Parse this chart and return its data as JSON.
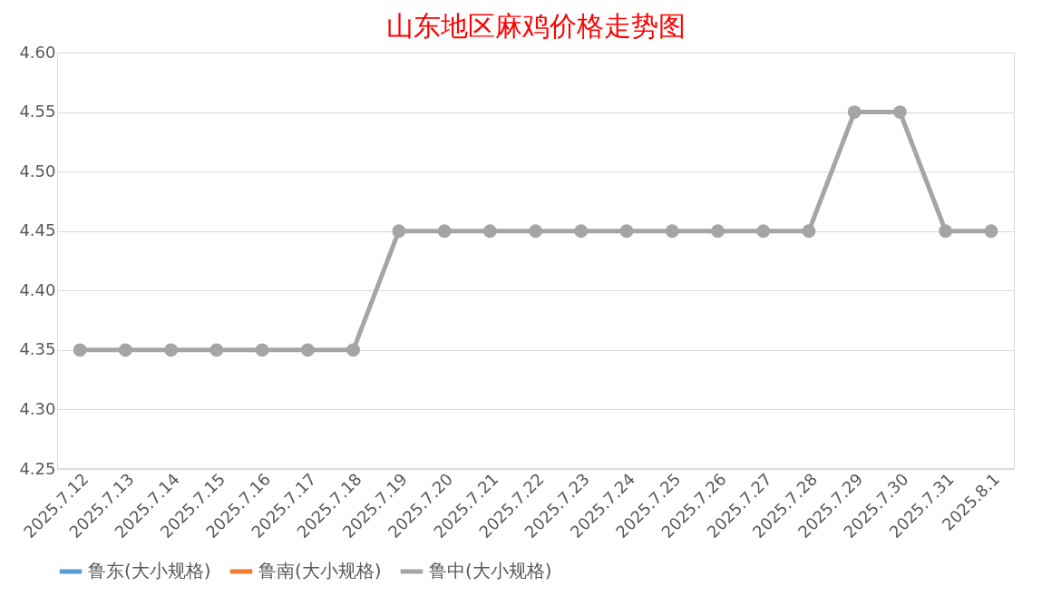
{
  "chart_data": {
    "type": "line",
    "title": "山东地区麻鸡价格走势图",
    "categories": [
      "2025.7.12",
      "2025.7.13",
      "2025.7.14",
      "2025.7.15",
      "2025.7.16",
      "2025.7.17",
      "2025.7.18",
      "2025.7.19",
      "2025.7.20",
      "2025.7.21",
      "2025.7.22",
      "2025.7.23",
      "2025.7.24",
      "2025.7.25",
      "2025.7.26",
      "2025.7.27",
      "2025.7.28",
      "2025.7.29",
      "2025.7.30",
      "2025.7.31",
      "2025.8.1"
    ],
    "series": [
      {
        "name": "鲁东(大小规格)",
        "color": "#5b9bd5",
        "values": [
          null,
          null,
          null,
          null,
          null,
          null,
          null,
          null,
          null,
          null,
          null,
          null,
          null,
          null,
          null,
          null,
          null,
          null,
          null,
          null,
          null
        ]
      },
      {
        "name": "鲁南(大小规格)",
        "color": "#ed7d31",
        "values": [
          null,
          null,
          null,
          null,
          null,
          null,
          null,
          null,
          null,
          null,
          null,
          null,
          null,
          null,
          null,
          null,
          null,
          null,
          null,
          null,
          null
        ]
      },
      {
        "name": "鲁中(大小规格)",
        "color": "#a5a5a5",
        "values": [
          4.35,
          4.35,
          4.35,
          4.35,
          4.35,
          4.35,
          4.35,
          4.45,
          4.45,
          4.45,
          4.45,
          4.45,
          4.45,
          4.45,
          4.45,
          4.45,
          4.45,
          4.55,
          4.55,
          4.45,
          4.45
        ]
      }
    ],
    "ylim": [
      4.25,
      4.6
    ],
    "yticks": [
      4.25,
      {
        "value": 4.3,
        "label": "4.30"
      },
      4.35,
      {
        "value": 4.4,
        "label": "4.40"
      },
      4.45,
      {
        "value": 4.5,
        "label": "4.50"
      },
      4.55,
      {
        "value": 4.6,
        "label": "4.60"
      }
    ],
    "grid": "y",
    "legend": "bottom",
    "marker": "circle",
    "line_style": "solid"
  }
}
